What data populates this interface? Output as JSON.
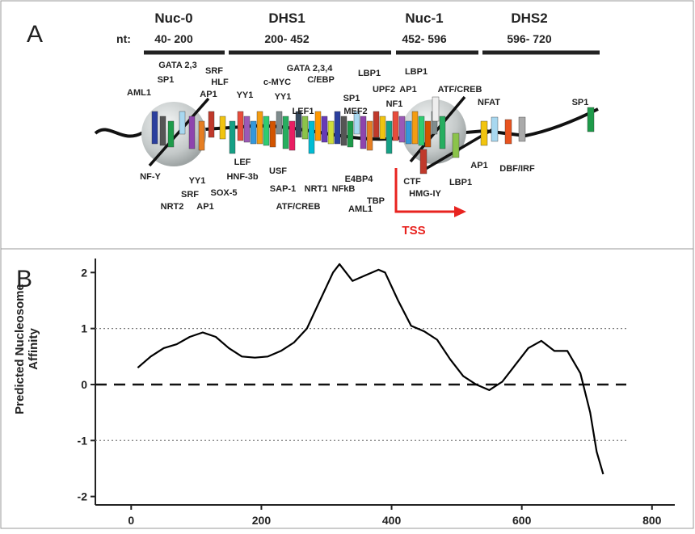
{
  "diagram": {
    "panel": "A",
    "nt_label": "nt:",
    "regions": [
      {
        "name": "Nuc-0",
        "range": "40- 200"
      },
      {
        "name": "DHS1",
        "range": "200- 452"
      },
      {
        "name": "Nuc-1",
        "range": "452- 596"
      },
      {
        "name": "DHS2",
        "range": "596- 720"
      }
    ],
    "factors": [
      "GATA 2,3",
      "SRF",
      "SP1",
      "HLF",
      "AML1",
      "AP1",
      "YY1",
      "c-MYC",
      "GATA 2,3,4",
      "C/EBP",
      "YY1",
      "LEF1",
      "SP1",
      "LBP1",
      "UPF2",
      "MEF2",
      "AP1",
      "NF1",
      "LBP1",
      "ATF/CREB",
      "NFAT",
      "SP1",
      "NF-Y",
      "YY1",
      "SRF",
      "NRT2",
      "AP1",
      "SOX-5",
      "LEF",
      "HNF-3b",
      "USF",
      "SAP-1",
      "NRT1",
      "NFkB",
      "E4BP4",
      "TBP",
      "ATF/CREB",
      "AML1",
      "CTF",
      "HMG-IY",
      "LBP1",
      "AP1",
      "DBF/IRF"
    ],
    "tss": "TSS"
  },
  "chart_data": {
    "type": "line",
    "panel": "B",
    "y_label": "Predicted Nucleosome Affinity",
    "color": "#000000",
    "x": [
      10,
      30,
      50,
      70,
      90,
      110,
      130,
      150,
      170,
      190,
      210,
      230,
      250,
      270,
      290,
      310,
      320,
      340,
      360,
      380,
      390,
      410,
      430,
      450,
      470,
      490,
      510,
      530,
      550,
      570,
      590,
      610,
      630,
      650,
      670,
      690,
      705,
      715,
      725
    ],
    "values": [
      0.3,
      0.5,
      0.65,
      0.72,
      0.85,
      0.93,
      0.85,
      0.65,
      0.5,
      0.48,
      0.5,
      0.6,
      0.75,
      1.0,
      1.5,
      2.0,
      2.15,
      1.85,
      1.95,
      2.05,
      2.0,
      1.5,
      1.05,
      0.95,
      0.8,
      0.45,
      0.15,
      0.0,
      -0.1,
      0.05,
      0.35,
      0.65,
      0.78,
      0.6,
      0.6,
      0.2,
      -0.5,
      -1.2,
      -1.6
    ],
    "xlim": [
      -55,
      835
    ],
    "ylim": [
      -2.15,
      2.25
    ],
    "xticks": [
      0,
      200,
      400,
      600,
      800
    ],
    "yticks": [
      -2,
      -1,
      0,
      1,
      2
    ],
    "hlines": [
      {
        "y": 1,
        "style": "dotted"
      },
      {
        "y": 0,
        "style": "dashed"
      },
      {
        "y": -1,
        "style": "dotted"
      }
    ]
  }
}
